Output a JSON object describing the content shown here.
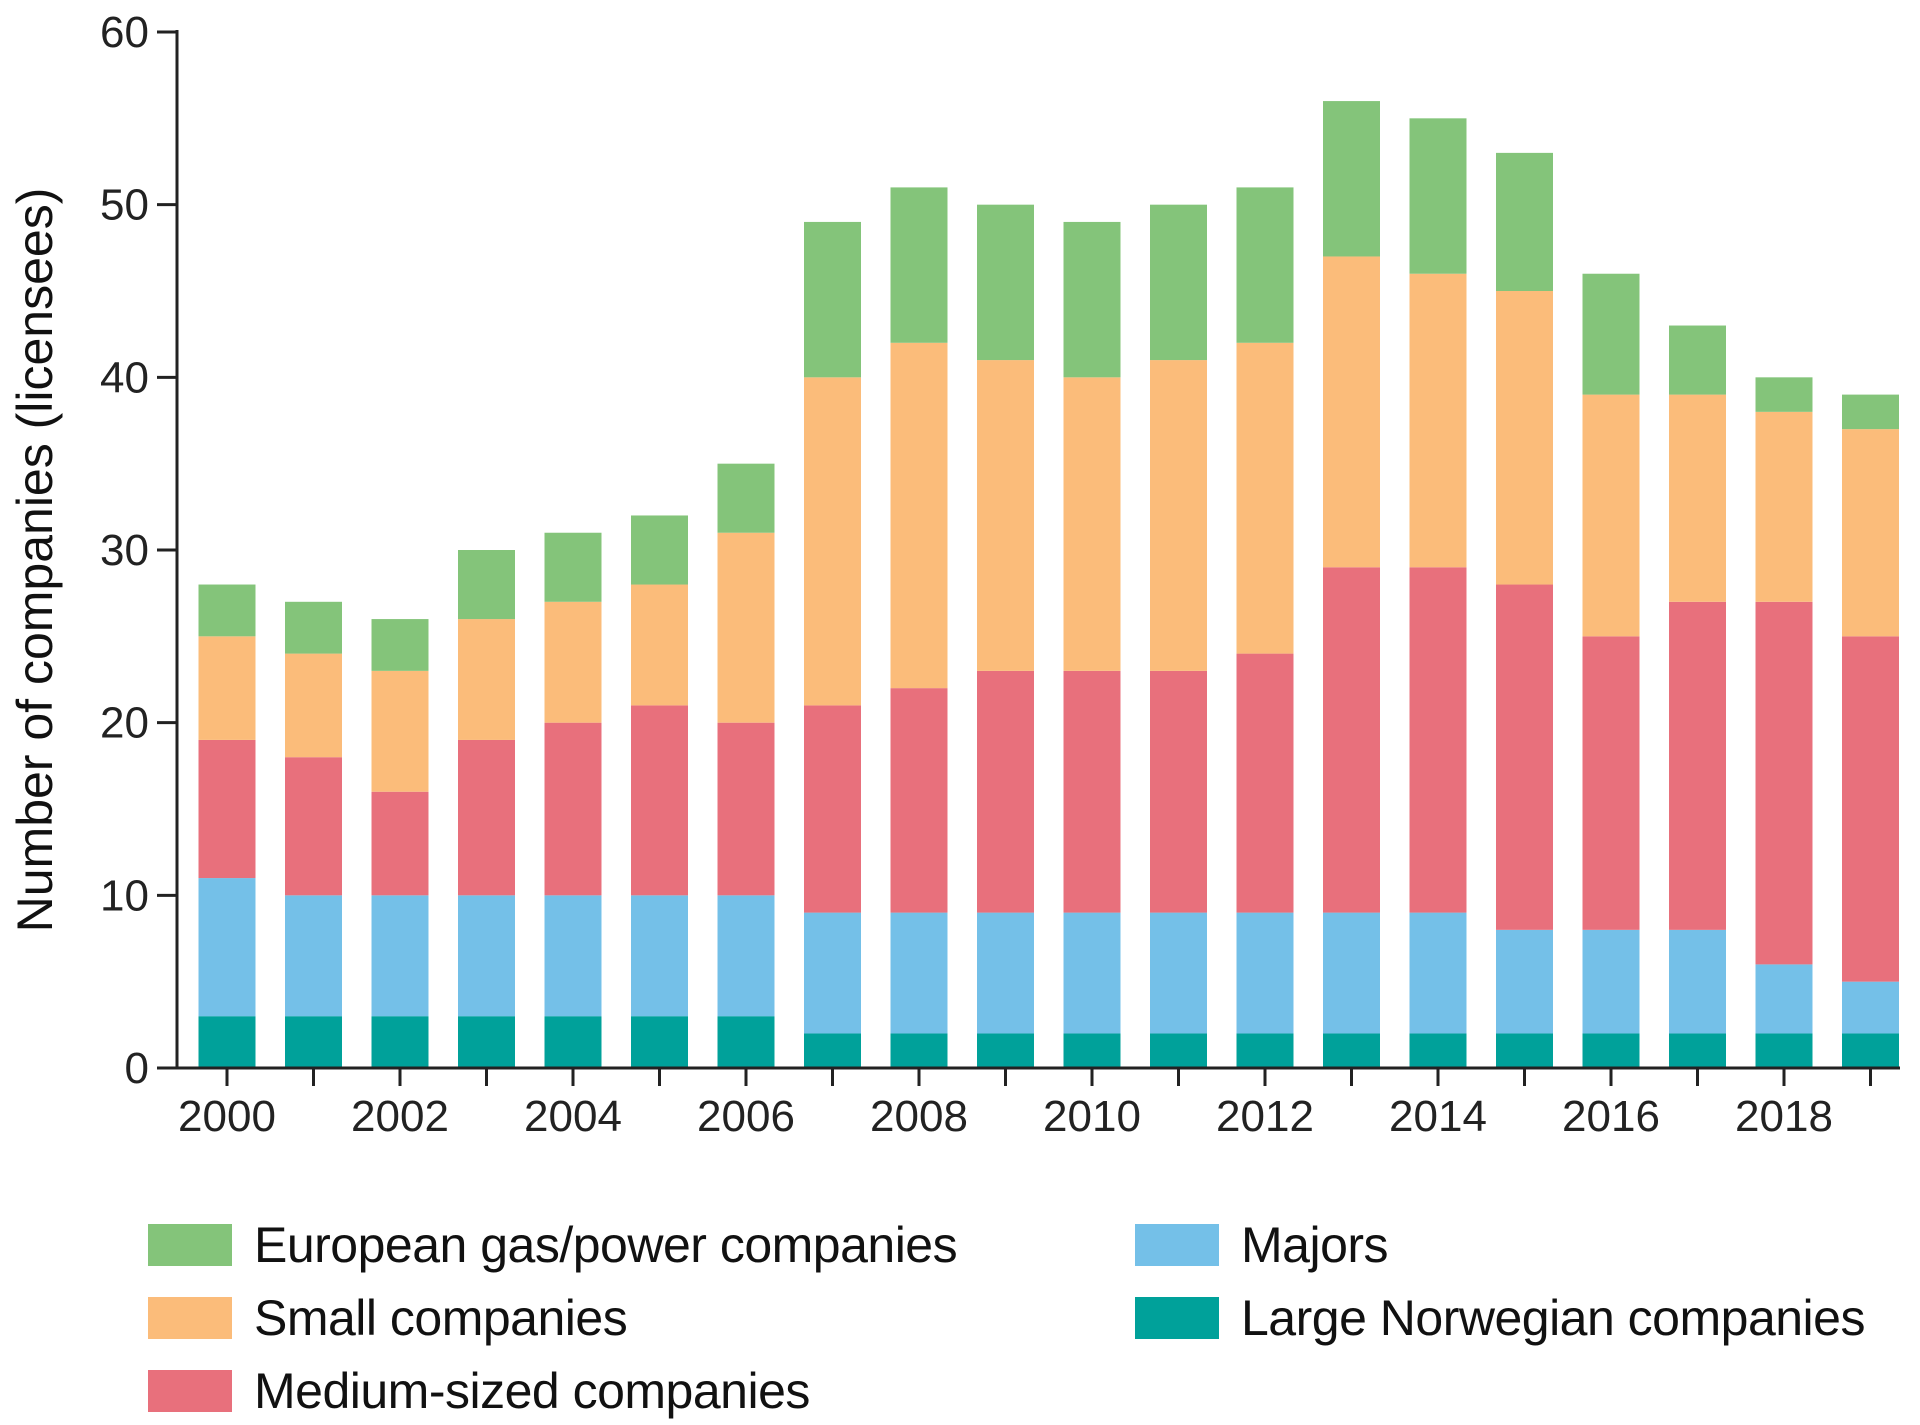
{
  "chart_data": {
    "type": "bar",
    "stacked": true,
    "title": "",
    "xlabel": "",
    "ylabel": "Number of companies (licensees)",
    "ylim": [
      0,
      60
    ],
    "yticks": [
      0,
      10,
      20,
      30,
      40,
      50,
      60
    ],
    "categories": [
      "2000",
      "2001",
      "2002",
      "2003",
      "2004",
      "2005",
      "2006",
      "2007",
      "2008",
      "2009",
      "2010",
      "2011",
      "2012",
      "2013",
      "2014",
      "2015",
      "2016",
      "2017",
      "2018",
      "2019"
    ],
    "xtick_labels": [
      "2000",
      "2002",
      "2004",
      "2006",
      "2008",
      "2010",
      "2012",
      "2014",
      "2016",
      "2018"
    ],
    "legend_position": "bottom",
    "series": [
      {
        "name": "Large Norwegian companies",
        "color": "#00A19A",
        "values": [
          3,
          3,
          3,
          3,
          3,
          3,
          3,
          2,
          2,
          2,
          2,
          2,
          2,
          2,
          2,
          2,
          2,
          2,
          2,
          2
        ]
      },
      {
        "name": "Majors",
        "color": "#74C0E8",
        "values": [
          8,
          7,
          7,
          7,
          7,
          7,
          7,
          7,
          7,
          7,
          7,
          7,
          7,
          7,
          7,
          6,
          6,
          6,
          4,
          3
        ]
      },
      {
        "name": "Medium-sized companies",
        "color": "#E8707C",
        "values": [
          8,
          8,
          6,
          9,
          10,
          11,
          10,
          12,
          13,
          14,
          14,
          14,
          15,
          20,
          20,
          20,
          17,
          19,
          21,
          20
        ]
      },
      {
        "name": "Small companies",
        "color": "#FBBC7A",
        "values": [
          6,
          6,
          7,
          7,
          7,
          7,
          11,
          19,
          20,
          18,
          17,
          18,
          18,
          18,
          17,
          17,
          14,
          12,
          11,
          12
        ]
      },
      {
        "name": "European gas/power companies",
        "color": "#84C47A",
        "values": [
          3,
          3,
          3,
          4,
          4,
          4,
          4,
          9,
          9,
          9,
          9,
          9,
          9,
          9,
          9,
          8,
          7,
          4,
          2,
          2
        ]
      }
    ]
  },
  "legend": {
    "items": [
      {
        "key": "european",
        "label": "European gas/power companies",
        "color": "#84C47A"
      },
      {
        "key": "small",
        "label": "Small companies",
        "color": "#FBBC7A"
      },
      {
        "key": "medium",
        "label": "Medium-sized companies",
        "color": "#E8707C"
      },
      {
        "key": "majors",
        "label": "Majors",
        "color": "#74C0E8"
      },
      {
        "key": "large",
        "label": "Large Norwegian companies",
        "color": "#00A19A"
      }
    ]
  }
}
